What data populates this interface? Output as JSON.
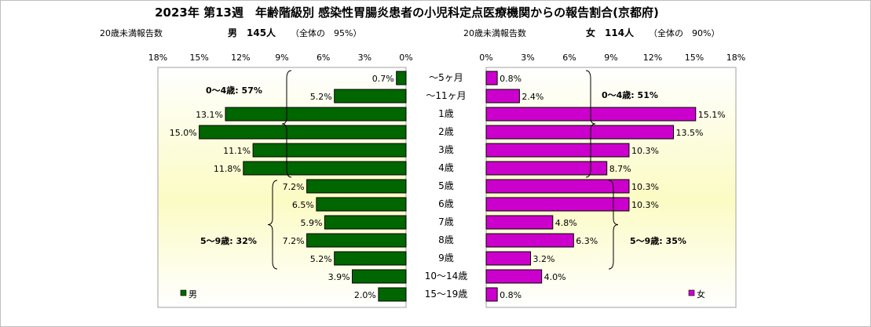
{
  "chart_data": {
    "type": "bar",
    "title": "2023年 第13週　年齢階級別 感染性胃腸炎患者の小児科定点医療機関からの報告割合(京都府)",
    "categories": [
      "〜5ヶ月",
      "〜11ヶ月",
      "1歳",
      "2歳",
      "3歳",
      "4歳",
      "5歳",
      "6歳",
      "7歳",
      "8歳",
      "9歳",
      "10〜14歳",
      "15〜19歳"
    ],
    "xlim": [
      0,
      18
    ],
    "ticks": [
      "0%",
      "3%",
      "6%",
      "9%",
      "12%",
      "15%",
      "18%"
    ],
    "grid": false,
    "series": [
      {
        "name": "男",
        "color": "#006600",
        "subtitle_label": "20歳未満報告数",
        "subtitle_count": "男　145人",
        "subtitle_share": "（全体の　95%）",
        "values": [
          0.7,
          5.2,
          13.1,
          15.0,
          11.1,
          11.8,
          7.2,
          6.5,
          5.9,
          7.2,
          5.2,
          3.9,
          2.0
        ],
        "labels": [
          "0.7%",
          "5.2%",
          "13.1%",
          "15.0%",
          "11.1%",
          "11.8%",
          "7.2%",
          "6.5%",
          "5.9%",
          "7.2%",
          "5.2%",
          "3.9%",
          "2.0%"
        ],
        "legend": "男",
        "annotations": [
          "0〜4歳: 57%",
          "5〜9歳: 32%"
        ]
      },
      {
        "name": "女",
        "color": "#cc00cc",
        "subtitle_label": "20歳未満報告数",
        "subtitle_count": "女　114人",
        "subtitle_share": "（全体の　90%）",
        "values": [
          0.8,
          2.4,
          15.1,
          13.5,
          10.3,
          8.7,
          10.3,
          10.3,
          4.8,
          6.3,
          3.2,
          4.0,
          0.8
        ],
        "labels": [
          "0.8%",
          "2.4%",
          "15.1%",
          "13.5%",
          "10.3%",
          "8.7%",
          "10.3%",
          "10.3%",
          "4.8%",
          "6.3%",
          "3.2%",
          "4.0%",
          "0.8%"
        ],
        "legend": "女",
        "annotations": [
          "0〜4歳: 51%",
          "5〜9歳: 35%"
        ]
      }
    ]
  }
}
